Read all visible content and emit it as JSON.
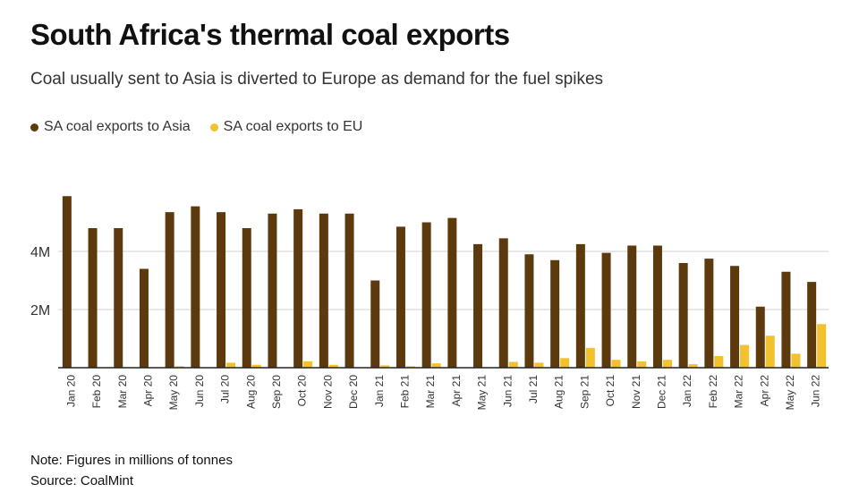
{
  "header": {
    "title": "South Africa's thermal coal exports",
    "subtitle": "Coal usually sent to Asia is diverted to Europe as demand for the fuel spikes"
  },
  "footer": {
    "note": "Note: Figures in millions of tonnes",
    "source": "Source: CoalMint"
  },
  "colors": {
    "asia": "#5c3a0e",
    "eu": "#f2c12e",
    "grid": "#d0d0d0",
    "axis": "#222222"
  },
  "chart_data": {
    "type": "bar",
    "categories": [
      "Jan 20",
      "Feb 20",
      "Mar 20",
      "Apr 20",
      "May 20",
      "Jun 20",
      "Jul 20",
      "Aug 20",
      "Sep 20",
      "Oct 20",
      "Nov 20",
      "Dec 20",
      "Jan 21",
      "Feb 21",
      "Mar 21",
      "Apr 21",
      "May 21",
      "Jun 21",
      "Jul 21",
      "Aug 21",
      "Sep 21",
      "Oct 21",
      "Nov 21",
      "Dec 21",
      "Jan 22",
      "Feb 22",
      "Mar 22",
      "Apr 22",
      "May 22",
      "Jun 22"
    ],
    "series": [
      {
        "name": "SA coal exports to Asia",
        "color": "#5c3a0e",
        "values": [
          5.9,
          4.8,
          4.8,
          3.4,
          5.35,
          5.55,
          5.35,
          4.8,
          5.3,
          5.45,
          5.3,
          5.3,
          3.0,
          4.85,
          5.0,
          5.15,
          4.25,
          4.45,
          3.9,
          3.7,
          4.25,
          3.95,
          4.2,
          4.2,
          3.6,
          3.75,
          3.5,
          2.1,
          3.3,
          2.95
        ]
      },
      {
        "name": "SA coal exports to EU",
        "color": "#f2c12e",
        "values": [
          0,
          0,
          0,
          0,
          0.05,
          0,
          0.17,
          0.1,
          0,
          0.22,
          0.1,
          0,
          0.08,
          0.05,
          0.15,
          0,
          0,
          0.2,
          0.17,
          0.33,
          0.68,
          0.27,
          0.22,
          0.27,
          0.12,
          0.4,
          0.78,
          1.1,
          0.48,
          1.5
        ]
      }
    ],
    "yticks": [
      {
        "value": 2,
        "label": "2M"
      },
      {
        "value": 4,
        "label": "4M"
      }
    ],
    "ylim": [
      0,
      6.2
    ],
    "grid": true,
    "legend_position": "top-left"
  }
}
